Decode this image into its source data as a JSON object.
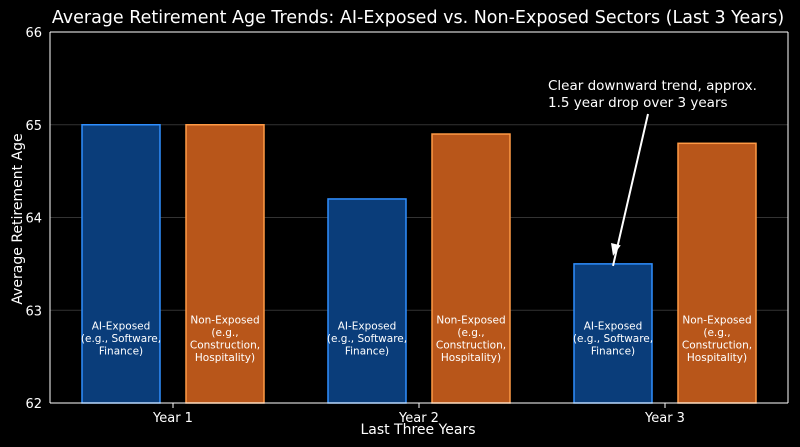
{
  "chart_data": {
    "type": "bar",
    "title": "Average Retirement Age Trends: AI-Exposed vs. Non-Exposed Sectors (Last 3 Years)",
    "xlabel": "Last Three Years",
    "ylabel": "Average Retirement Age",
    "categories": [
      "Year 1",
      "Year 2",
      "Year 3"
    ],
    "ylim": [
      62,
      66
    ],
    "yticks": [
      "62",
      "63",
      "64",
      "65",
      "66"
    ],
    "grid": true,
    "series": [
      {
        "label_lines": [
          "AI-Exposed",
          "(e.g., Software,",
          "Finance)"
        ],
        "values": [
          65.0,
          64.2,
          63.5
        ],
        "fill": "#0a3d7a",
        "edge": "#2f8fff"
      },
      {
        "label_lines": [
          "Non-Exposed",
          "(e.g.,",
          "Construction,",
          "Hospitality)"
        ],
        "values": [
          65.0,
          64.9,
          64.8
        ],
        "fill": "#b8561a",
        "edge": "#ff9a45"
      }
    ],
    "annotation": {
      "lines": [
        "Clear downward trend, approx.",
        "1.5 year drop over 3 years"
      ],
      "points_to_category": "Year 3",
      "points_to_series": 0
    },
    "background": "#000000",
    "grid_color": "#333333",
    "text_color": "#ffffff"
  }
}
